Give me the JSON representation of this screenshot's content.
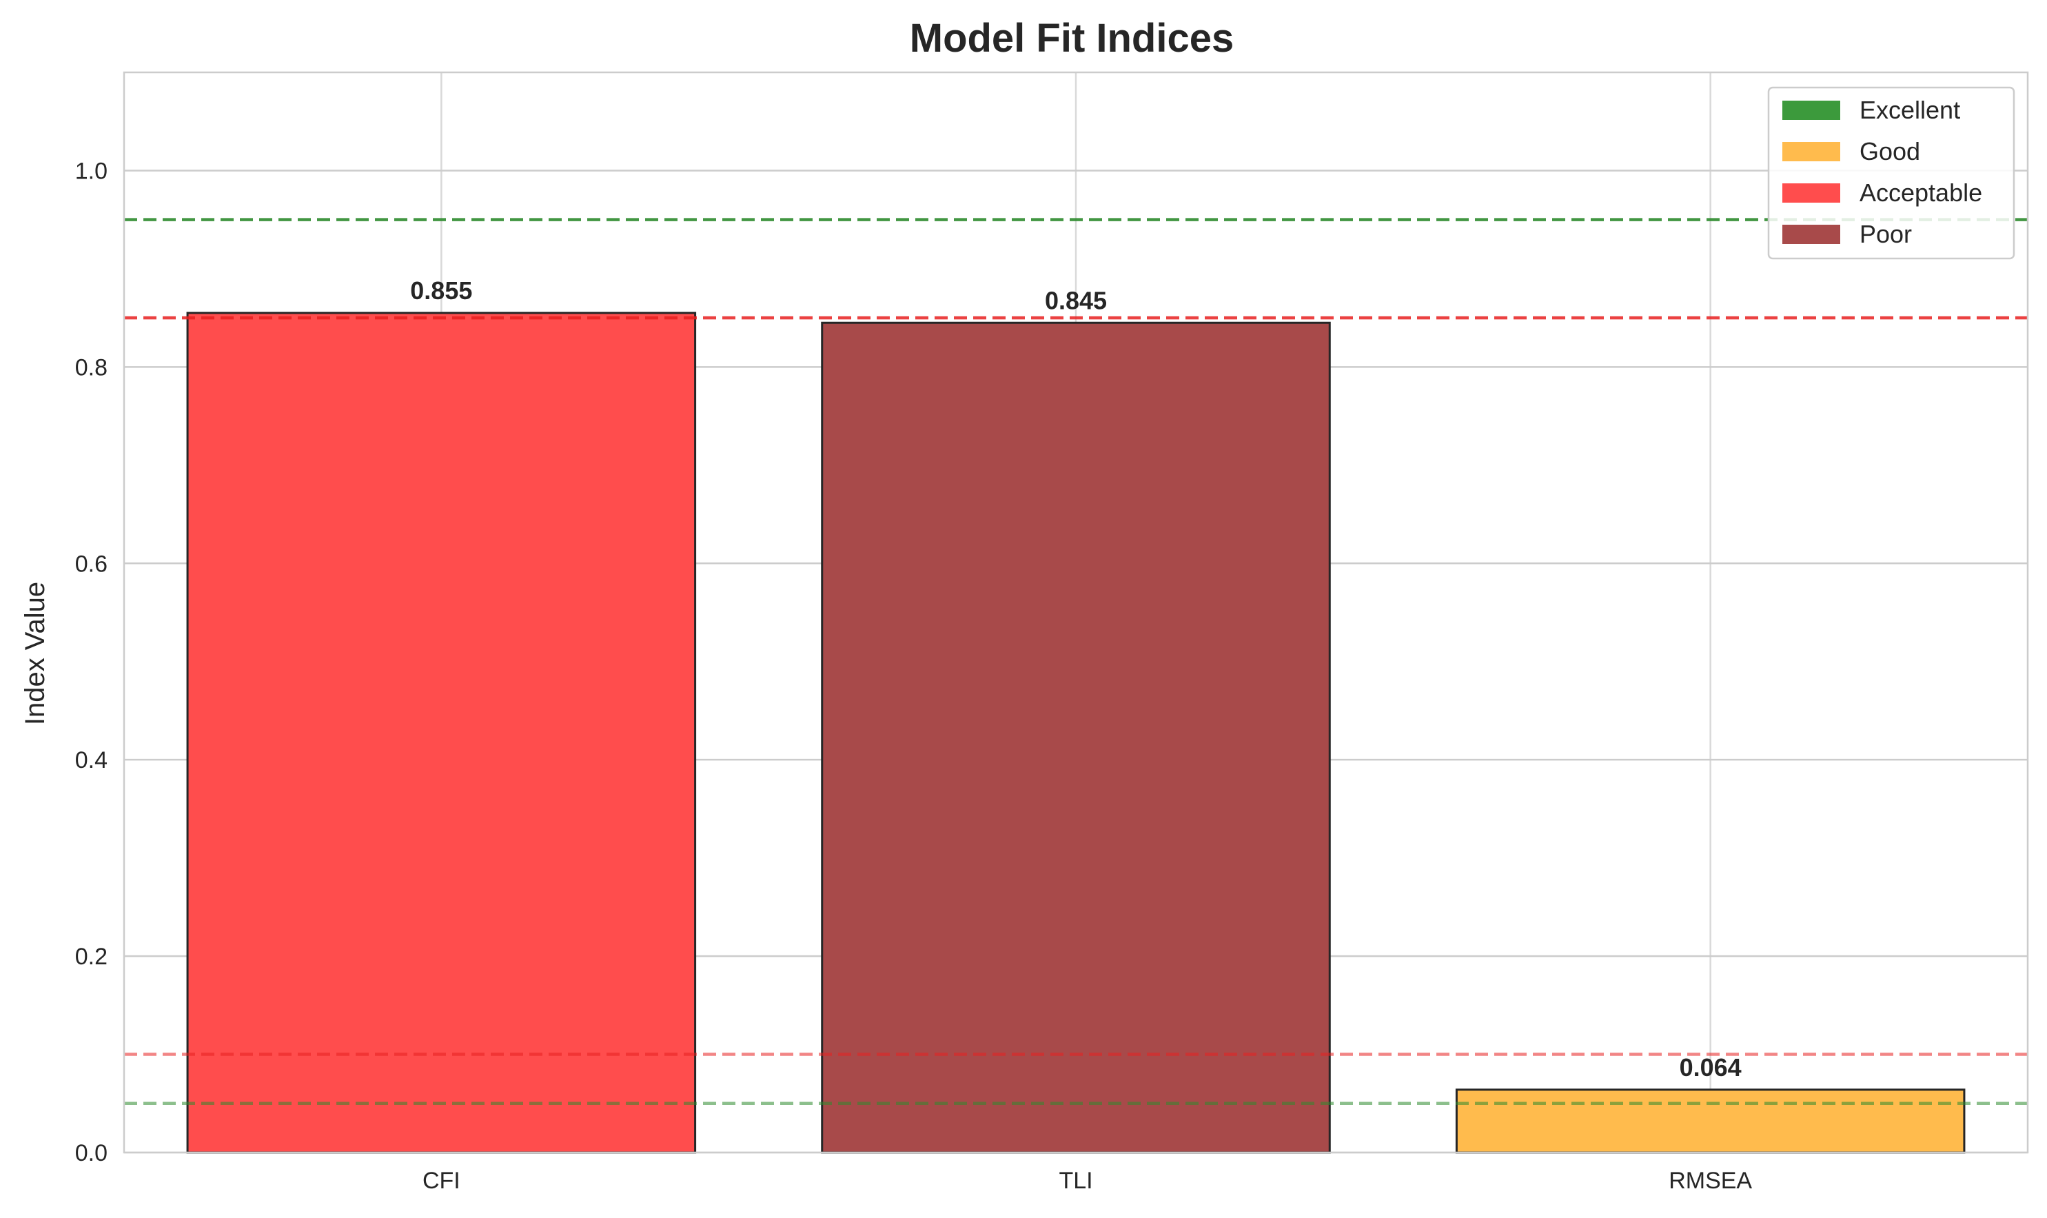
{
  "chart_data": {
    "type": "bar",
    "title": "Model Fit Indices",
    "xlabel": "",
    "ylabel": "Index Value",
    "categories": [
      "CFI",
      "TLI",
      "RMSEA"
    ],
    "values": [
      0.855,
      0.845,
      0.064
    ],
    "value_labels": [
      "0.855",
      "0.845",
      "0.064"
    ],
    "bar_colors": [
      "#ff4d4d",
      "#a84a4a",
      "#ffbb4d"
    ],
    "bar_edge_color": "#262626",
    "ylim": [
      0,
      1.1
    ],
    "yticks": [
      0.0,
      0.2,
      0.4,
      0.6,
      0.8,
      1.0
    ],
    "ytick_labels": [
      "0.0",
      "0.2",
      "0.4",
      "0.6",
      "0.8",
      "1.0"
    ],
    "grid": true,
    "reference_lines": [
      {
        "value": 0.95,
        "color": "#2e8b2e",
        "opacity": 0.9
      },
      {
        "value": 0.85,
        "color": "#e82020",
        "opacity": 0.85
      },
      {
        "value": 0.1,
        "color": "#e82020",
        "opacity": 0.55
      },
      {
        "value": 0.05,
        "color": "#2e8b2e",
        "opacity": 0.55
      }
    ],
    "legend": {
      "position": "top-right",
      "entries": [
        {
          "label": "Excellent",
          "color": "#3c9a3c"
        },
        {
          "label": "Good",
          "color": "#ffbb4d"
        },
        {
          "label": "Acceptable",
          "color": "#ff4d4d"
        },
        {
          "label": "Poor",
          "color": "#a84a4a"
        }
      ]
    }
  }
}
